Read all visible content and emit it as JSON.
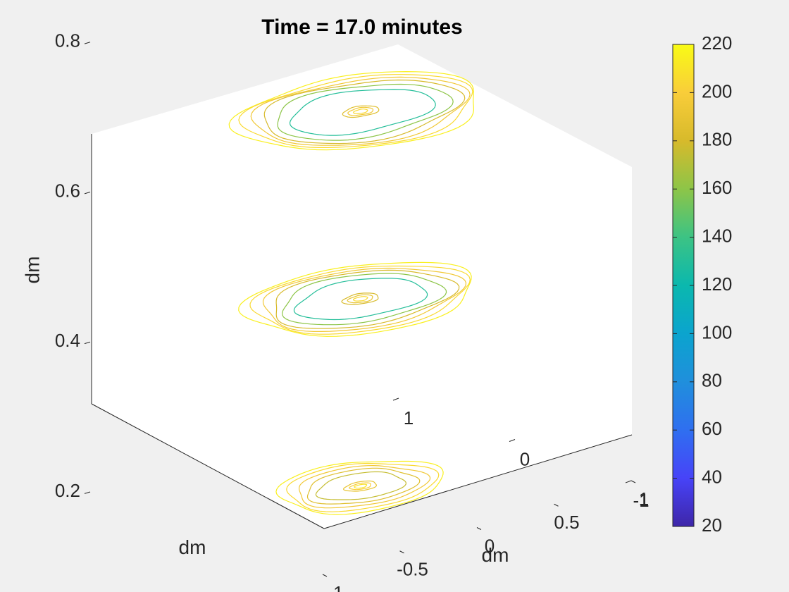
{
  "figure": {
    "background": "#f0f0f0",
    "axes_background": "#ffffff",
    "axis_color": "#262626"
  },
  "chart_data": {
    "type": "contour3-slices",
    "title": "Time = 17.0 minutes",
    "xlabel": "dm",
    "ylabel": "dm",
    "zlabel": "dm",
    "xlim": [
      -1,
      1
    ],
    "ylim": [
      -1,
      1
    ],
    "zlim": [
      0.2,
      0.8
    ],
    "x_ticks": [
      "-1",
      "-0.5",
      "0",
      "0.5",
      "1"
    ],
    "y_ticks": [
      "-1",
      "0",
      "1"
    ],
    "z_ticks": [
      "0.2",
      "0.4",
      "0.6",
      "0.8"
    ],
    "colormap": "parula",
    "colorbar": {
      "limits": [
        20,
        220
      ],
      "ticks": [
        "20",
        "40",
        "60",
        "80",
        "100",
        "120",
        "140",
        "160",
        "180",
        "200",
        "220"
      ]
    },
    "slices": [
      {
        "z": 0.7,
        "contours": [
          {
            "level": 215,
            "rx": 0.66,
            "ry": 0.58
          },
          {
            "level": 205,
            "rx": 0.62,
            "ry": 0.54
          },
          {
            "level": 195,
            "rx": 0.58,
            "ry": 0.5
          },
          {
            "level": 180,
            "rx": 0.54,
            "ry": 0.46
          },
          {
            "level": 160,
            "rx": 0.48,
            "ry": 0.4
          },
          {
            "level": 130,
            "rx": 0.4,
            "ry": 0.32
          },
          {
            "level": 185,
            "rx": 0.1,
            "ry": 0.08
          },
          {
            "level": 195,
            "rx": 0.07,
            "ry": 0.055
          },
          {
            "level": 205,
            "rx": 0.04,
            "ry": 0.03
          }
        ]
      },
      {
        "z": 0.45,
        "contours": [
          {
            "level": 215,
            "rx": 0.62,
            "ry": 0.54
          },
          {
            "level": 205,
            "rx": 0.58,
            "ry": 0.5
          },
          {
            "level": 195,
            "rx": 0.54,
            "ry": 0.46
          },
          {
            "level": 180,
            "rx": 0.5,
            "ry": 0.42
          },
          {
            "level": 160,
            "rx": 0.44,
            "ry": 0.37
          },
          {
            "level": 130,
            "rx": 0.36,
            "ry": 0.29
          },
          {
            "level": 180,
            "rx": 0.1,
            "ry": 0.08
          },
          {
            "level": 190,
            "rx": 0.07,
            "ry": 0.055
          },
          {
            "level": 205,
            "rx": 0.04,
            "ry": 0.03
          }
        ]
      },
      {
        "z": 0.2,
        "contours": [
          {
            "level": 215,
            "rx": 0.44,
            "ry": 0.4
          },
          {
            "level": 205,
            "rx": 0.4,
            "ry": 0.36
          },
          {
            "level": 195,
            "rx": 0.35,
            "ry": 0.31
          },
          {
            "level": 185,
            "rx": 0.3,
            "ry": 0.26
          },
          {
            "level": 175,
            "rx": 0.24,
            "ry": 0.2
          },
          {
            "level": 190,
            "rx": 0.09,
            "ry": 0.07
          },
          {
            "level": 200,
            "rx": 0.06,
            "ry": 0.045
          },
          {
            "level": 210,
            "rx": 0.035,
            "ry": 0.025
          }
        ]
      }
    ]
  }
}
